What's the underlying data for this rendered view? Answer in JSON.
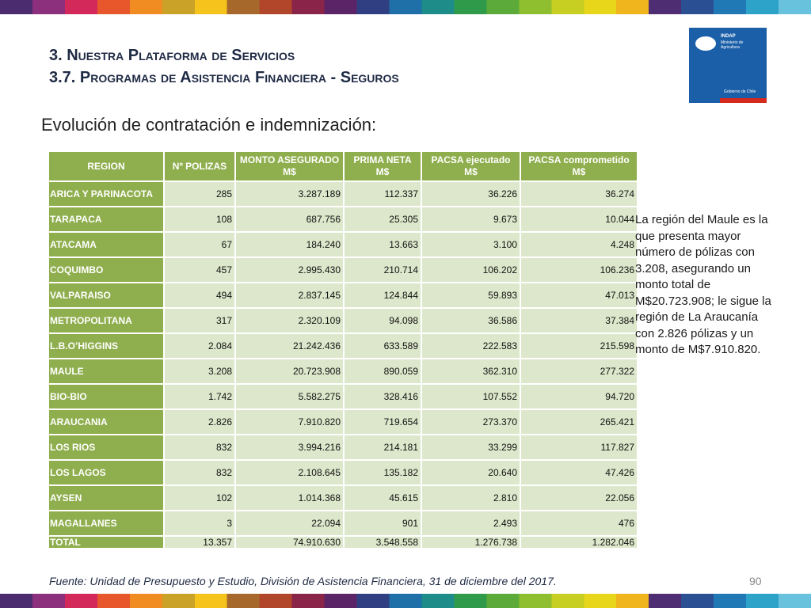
{
  "header": {
    "title": "3. Nuestra Plataforma de Servicios",
    "subtitle": "3.7. Programas de Asistencia Financiera - Seguros"
  },
  "logo": {
    "name": "INDAP",
    "ministry": "Ministerio de Agricultura",
    "government": "Gobierno de Chile"
  },
  "heading": "Evolución de contratación e indemnización:",
  "table": {
    "columns": [
      "REGION",
      "Nº POLIZAS",
      "MONTO ASEGURADO M$",
      "PRIMA NETA M$",
      "PACSA ejecutado M$",
      "PACSA comprometido M$"
    ],
    "rows": [
      [
        "ARICA Y PARINACOTA",
        "285",
        "3.287.189",
        "112.337",
        "36.226",
        "36.274"
      ],
      [
        "TARAPACA",
        "108",
        "687.756",
        "25.305",
        "9.673",
        "10.044"
      ],
      [
        "ATACAMA",
        "67",
        "184.240",
        "13.663",
        "3.100",
        "4.248"
      ],
      [
        "COQUIMBO",
        "457",
        "2.995.430",
        "210.714",
        "106.202",
        "106.236"
      ],
      [
        "VALPARAISO",
        "494",
        "2.837.145",
        "124.844",
        "59.893",
        "47.013"
      ],
      [
        "METROPOLITANA",
        "317",
        "2.320.109",
        "94.098",
        "36.586",
        "37.384"
      ],
      [
        "L.B.O’HIGGINS",
        "2.084",
        "21.242.436",
        "633.589",
        "222.583",
        "215.598"
      ],
      [
        "MAULE",
        "3.208",
        "20.723.908",
        "890.059",
        "362.310",
        "277.322"
      ],
      [
        "BIO-BIO",
        "1.742",
        "5.582.275",
        "328.416",
        "107.552",
        "94.720"
      ],
      [
        "ARAUCANIA",
        "2.826",
        "7.910.820",
        "719.654",
        "273.370",
        "265.421"
      ],
      [
        "LOS RIOS",
        "832",
        "3.994.216",
        "214.181",
        "33.299",
        "117.827"
      ],
      [
        "LOS LAGOS",
        "832",
        "2.108.645",
        "135.182",
        "20.640",
        "47.426"
      ],
      [
        "AYSEN",
        "102",
        "1.014.368",
        "45.615",
        "2.810",
        "22.056"
      ],
      [
        "MAGALLANES",
        "3",
        "22.094",
        "901",
        "2.493",
        "476"
      ]
    ],
    "total": [
      "TOTAL",
      "13.357",
      "74.910.630",
      "3.548.558",
      "1.276.738",
      "1.282.046"
    ]
  },
  "note": "La región del Maule es la que presenta mayor número de pólizas con 3.208, asegurando un monto total de M$20.723.908; le sigue la región de La Araucanía con 2.826 pólizas y un monto de M$7.910.820.",
  "source": "Fuente: Unidad de Presupuesto y Estudio, División de Asistencia Financiera, 31 de diciembre del 2017.",
  "page_number": "90"
}
